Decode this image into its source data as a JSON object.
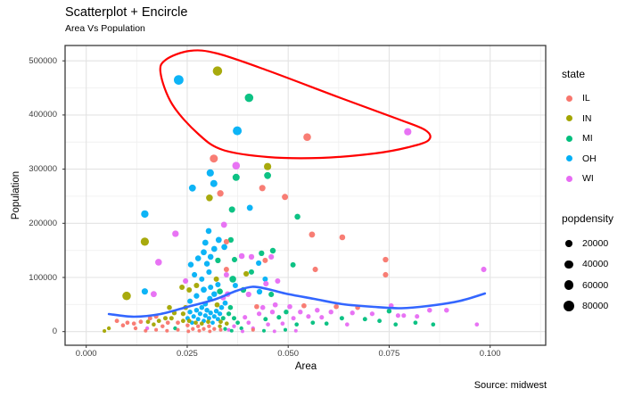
{
  "chart_data": {
    "type": "scatter",
    "title": "Scatterplot + Encircle",
    "subtitle": "Area Vs Population",
    "caption": "Source: midwest",
    "xlabel": "Area",
    "ylabel": "Population",
    "x_axis": {
      "ticks": [
        0,
        0.025,
        0.05,
        0.075,
        0.1
      ],
      "labels": [
        "0.000",
        "0.025",
        "0.050",
        "0.075",
        "0.100"
      ],
      "minor": [
        0.0125,
        0.0375,
        0.0625,
        0.0875,
        0.1125
      ]
    },
    "y_axis": {
      "ticks": [
        0,
        100000,
        200000,
        300000,
        400000,
        500000
      ],
      "labels": [
        "0",
        "100000",
        "200000",
        "300000",
        "400000",
        "500000"
      ],
      "minor": [
        50000,
        150000,
        250000,
        350000,
        450000
      ]
    },
    "grid": true,
    "legend_position": "right",
    "series_colors": {
      "IL": "#F8766D",
      "IN": "#A3A500",
      "MI": "#00BF7D",
      "OH": "#00B0F6",
      "WI": "#E76BF3"
    },
    "smooth_color": "#3366FF",
    "encircle_color": "#FF0000",
    "grid_major_color": "#E3E3E3",
    "grid_minor_color": "#F0F0F0",
    "panel_border_color": "#3A3A3A",
    "point_columns": [
      "area",
      "poptotal",
      "state",
      "popdensity"
    ],
    "points": [
      [
        0.0229,
        464800,
        "OH",
        60000
      ],
      [
        0.0325,
        481300,
        "IN",
        55000
      ],
      [
        0.0403,
        431800,
        "MI",
        42000
      ],
      [
        0.0374,
        370800,
        "OH",
        48000
      ],
      [
        0.0547,
        359200,
        "IL",
        30000
      ],
      [
        0.0796,
        369100,
        "WI",
        26000
      ],
      [
        0.0316,
        319600,
        "IL",
        35000
      ],
      [
        0.0371,
        306400,
        "WI",
        30000
      ],
      [
        0.0449,
        304700,
        "IN",
        26000
      ],
      [
        0.0371,
        284900,
        "MI",
        24000
      ],
      [
        0.0449,
        288200,
        "MI",
        22000
      ],
      [
        0.0307,
        293100,
        "OH",
        26000
      ],
      [
        0.0316,
        273400,
        "OH",
        24000
      ],
      [
        0.0263,
        265100,
        "OH",
        22000
      ],
      [
        0.0305,
        247000,
        "IN",
        20000
      ],
      [
        0.0332,
        255200,
        "IL",
        18000
      ],
      [
        0.0436,
        265100,
        "IL",
        16000
      ],
      [
        0.0492,
        248600,
        "IL",
        15000
      ],
      [
        0.0145,
        217200,
        "OH",
        28000
      ],
      [
        0.0361,
        225400,
        "MI",
        16000
      ],
      [
        0.0405,
        228700,
        "OH",
        14000
      ],
      [
        0.0523,
        212200,
        "MI",
        12000
      ],
      [
        0.0341,
        197300,
        "WI",
        14000
      ],
      [
        0.0221,
        180800,
        "WI",
        18000
      ],
      [
        0.0559,
        179200,
        "IL",
        14000
      ],
      [
        0.0634,
        174200,
        "IL",
        12000
      ],
      [
        0.0145,
        166000,
        "IN",
        38000
      ],
      [
        0.0179,
        128100,
        "WI",
        20000
      ],
      [
        0.0358,
        169300,
        "MI",
        10000
      ],
      [
        0.0347,
        166000,
        "IL",
        9000
      ],
      [
        0.0385,
        139600,
        "WI",
        12000
      ],
      [
        0.0409,
        138000,
        "WI",
        10000
      ],
      [
        0.0367,
        133000,
        "MI",
        9000
      ],
      [
        0.0434,
        144600,
        "MI",
        10000
      ],
      [
        0.0462,
        149500,
        "MI",
        11000
      ],
      [
        0.0458,
        138000,
        "WI",
        9000
      ],
      [
        0.0427,
        126500,
        "OH",
        9000
      ],
      [
        0.0443,
        131400,
        "IL",
        8000
      ],
      [
        0.0347,
        114900,
        "IL",
        8000
      ],
      [
        0.0347,
        105000,
        "WI",
        8000
      ],
      [
        0.0396,
        106700,
        "IN",
        9000
      ],
      [
        0.0409,
        110000,
        "MI",
        8000
      ],
      [
        0.0363,
        96800,
        "MI",
        20000
      ],
      [
        0.0443,
        96800,
        "OH",
        8000
      ],
      [
        0.0369,
        85200,
        "OH",
        8000
      ],
      [
        0.0445,
        88500,
        "WI",
        9000
      ],
      [
        0.0474,
        93400,
        "WI",
        8000
      ],
      [
        0.0512,
        123200,
        "MI",
        8000
      ],
      [
        0.0567,
        114900,
        "IL",
        9000
      ],
      [
        0.0741,
        133000,
        "IL",
        10000
      ],
      [
        0.0741,
        105000,
        "IL",
        9000
      ],
      [
        0.0984,
        114900,
        "WI",
        9000
      ],
      [
        0.0303,
        185800,
        "OH",
        12000
      ],
      [
        0.0045,
        1200,
        "IN",
        800
      ],
      [
        0.0056,
        6100,
        "IN",
        1500
      ],
      [
        0.01,
        65900,
        "IN",
        42000
      ],
      [
        0.0076,
        19800,
        "IL",
        3000
      ],
      [
        0.0091,
        11500,
        "IL",
        2000
      ],
      [
        0.0102,
        16500,
        "IL",
        2500
      ],
      [
        0.0118,
        14800,
        "IL",
        2200
      ],
      [
        0.0122,
        6100,
        "IL",
        1500
      ],
      [
        0.0135,
        18100,
        "IL",
        2600
      ],
      [
        0.0145,
        74200,
        "OH",
        16000
      ],
      [
        0.0167,
        69200,
        "WI",
        14000
      ],
      [
        0.0151,
        6100,
        "WI",
        1500
      ],
      [
        0.0153,
        18100,
        "IN",
        2600
      ],
      [
        0.0167,
        13200,
        "IN",
        2000
      ],
      [
        0.018,
        19800,
        "IN",
        2800
      ],
      [
        0.0158,
        24700,
        "IL",
        3400
      ],
      [
        0.0173,
        28000,
        "IL",
        3800
      ],
      [
        0.0189,
        9900,
        "IL",
        1800
      ],
      [
        0.0202,
        16500,
        "IL",
        2500
      ],
      [
        0.0196,
        24700,
        "IN",
        3400
      ],
      [
        0.0211,
        24700,
        "IN",
        3400
      ],
      [
        0.0218,
        34600,
        "IN",
        4600
      ],
      [
        0.0206,
        44500,
        "IN",
        6000
      ],
      [
        0.022,
        6100,
        "MI",
        1500
      ],
      [
        0.0227,
        16500,
        "IL",
        2500
      ],
      [
        0.024,
        33000,
        "IN",
        4400
      ],
      [
        0.0246,
        44500,
        "IN",
        6000
      ],
      [
        0.0251,
        24700,
        "OH",
        3400
      ],
      [
        0.0257,
        36200,
        "OH",
        5000
      ],
      [
        0.0262,
        16500,
        "OH",
        2500
      ],
      [
        0.0266,
        28000,
        "OH",
        4000
      ],
      [
        0.0273,
        39500,
        "OH",
        5400
      ],
      [
        0.0277,
        23100,
        "OH",
        3200
      ],
      [
        0.0282,
        33000,
        "OH",
        4400
      ],
      [
        0.0286,
        44500,
        "OH",
        6000
      ],
      [
        0.0291,
        19800,
        "OH",
        2800
      ],
      [
        0.0295,
        29700,
        "OH",
        4200
      ],
      [
        0.0299,
        39500,
        "OH",
        5400
      ],
      [
        0.0304,
        24700,
        "OH",
        3400
      ],
      [
        0.0308,
        34600,
        "OH",
        4600
      ],
      [
        0.0313,
        16500,
        "OH",
        2500
      ],
      [
        0.0317,
        28000,
        "OH",
        4000
      ],
      [
        0.0322,
        37900,
        "OH",
        5200
      ],
      [
        0.0326,
        23100,
        "OH",
        3200
      ],
      [
        0.0331,
        33000,
        "OH",
        4400
      ],
      [
        0.0295,
        51100,
        "OH",
        7000
      ],
      [
        0.0306,
        61000,
        "OH",
        9000
      ],
      [
        0.0317,
        69200,
        "OH",
        11000
      ],
      [
        0.0291,
        77400,
        "OH",
        13000
      ],
      [
        0.0273,
        65900,
        "OH",
        10000
      ],
      [
        0.0257,
        56100,
        "OH",
        8000
      ],
      [
        0.0335,
        44500,
        "OH",
        6000
      ],
      [
        0.0344,
        52700,
        "OH",
        7200
      ],
      [
        0.0251,
        11500,
        "IL",
        1800
      ],
      [
        0.0264,
        4900,
        "IL",
        1200
      ],
      [
        0.0277,
        9900,
        "IL",
        1600
      ],
      [
        0.0291,
        4900,
        "IL",
        1200
      ],
      [
        0.0304,
        9900,
        "IL",
        1600
      ],
      [
        0.0317,
        4900,
        "IL",
        1200
      ],
      [
        0.0331,
        9900,
        "IN",
        1600
      ],
      [
        0.0344,
        4900,
        "MI",
        1200
      ],
      [
        0.024,
        19800,
        "IN",
        2800
      ],
      [
        0.0255,
        19800,
        "IN",
        2800
      ],
      [
        0.0271,
        16500,
        "IN",
        2500
      ],
      [
        0.0286,
        14800,
        "IN",
        2300
      ],
      [
        0.0302,
        18100,
        "IN",
        2600
      ],
      [
        0.0333,
        18100,
        "IN",
        2600
      ],
      [
        0.0348,
        14800,
        "IN",
        2300
      ],
      [
        0.0339,
        24700,
        "MI",
        3400
      ],
      [
        0.0353,
        33000,
        "MI",
        4400
      ],
      [
        0.0324,
        49400,
        "IN",
        6600
      ],
      [
        0.0339,
        62600,
        "WI",
        9400
      ],
      [
        0.035,
        69200,
        "WI",
        11000
      ],
      [
        0.0331,
        74200,
        "MI",
        12600
      ],
      [
        0.0357,
        44500,
        "MI",
        6000
      ],
      [
        0.0366,
        24700,
        "MI",
        3400
      ],
      [
        0.0366,
        9900,
        "WI",
        1600
      ],
      [
        0.0353,
        3300,
        "WI",
        1100
      ],
      [
        0.0259,
        123700,
        "OH",
        11000
      ],
      [
        0.0277,
        135200,
        "OH",
        12000
      ],
      [
        0.0291,
        146700,
        "OH",
        13000
      ],
      [
        0.0299,
        125400,
        "OH",
        11000
      ],
      [
        0.0308,
        138000,
        "OH",
        12000
      ],
      [
        0.0317,
        152800,
        "OH",
        13000
      ],
      [
        0.0326,
        131400,
        "MI",
        10000
      ],
      [
        0.0268,
        105000,
        "OH",
        9000
      ],
      [
        0.0286,
        96800,
        "OH",
        8000
      ],
      [
        0.0304,
        110000,
        "OH",
        9000
      ],
      [
        0.0322,
        96800,
        "IN",
        8000
      ],
      [
        0.0246,
        93400,
        "WI",
        9000
      ],
      [
        0.0237,
        81900,
        "IN",
        8000
      ],
      [
        0.0255,
        77000,
        "IN",
        8000
      ],
      [
        0.0273,
        85200,
        "IN",
        8400
      ],
      [
        0.0308,
        81900,
        "OH",
        8400
      ],
      [
        0.0326,
        86900,
        "OH",
        8800
      ],
      [
        0.0295,
        164300,
        "OH",
        14000
      ],
      [
        0.0328,
        169300,
        "OH",
        14000
      ],
      [
        0.0342,
        156100,
        "OH",
        13000
      ],
      [
        0.0389,
        77000,
        "MI",
        11000
      ],
      [
        0.0402,
        68700,
        "WI",
        9400
      ],
      [
        0.0429,
        73700,
        "OH",
        10000
      ],
      [
        0.0458,
        68700,
        "MI",
        9000
      ],
      [
        0.0375,
        16500,
        "MI",
        2500
      ],
      [
        0.0384,
        6100,
        "MI",
        1500
      ],
      [
        0.0393,
        26400,
        "WI",
        3600
      ],
      [
        0.0402,
        16500,
        "WI",
        2500
      ],
      [
        0.0413,
        6100,
        "WI",
        1500
      ],
      [
        0.0422,
        46100,
        "IL",
        6200
      ],
      [
        0.0428,
        33000,
        "WI",
        4400
      ],
      [
        0.0437,
        44500,
        "WI",
        6000
      ],
      [
        0.0444,
        23100,
        "MI",
        3100
      ],
      [
        0.045,
        13200,
        "WI",
        2200
      ],
      [
        0.0461,
        36200,
        "WI",
        5000
      ],
      [
        0.0468,
        49400,
        "WI",
        6600
      ],
      [
        0.0477,
        26400,
        "MI",
        3600
      ],
      [
        0.0486,
        14800,
        "WI",
        2300
      ],
      [
        0.0495,
        36200,
        "MI",
        5000
      ],
      [
        0.0504,
        46100,
        "WI",
        6200
      ],
      [
        0.0513,
        24700,
        "WI",
        3400
      ],
      [
        0.0521,
        13200,
        "MI",
        2200
      ],
      [
        0.053,
        36200,
        "WI",
        5000
      ],
      [
        0.0539,
        47800,
        "IL",
        6400
      ],
      [
        0.055,
        28000,
        "WI",
        4000
      ],
      [
        0.0561,
        16500,
        "MI",
        2500
      ],
      [
        0.0572,
        39500,
        "WI",
        5400
      ],
      [
        0.0583,
        26400,
        "WI",
        3600
      ],
      [
        0.0595,
        14800,
        "MI",
        2300
      ],
      [
        0.0606,
        36200,
        "WI",
        5000
      ],
      [
        0.0619,
        46100,
        "IL",
        6200
      ],
      [
        0.0633,
        24700,
        "MI",
        3400
      ],
      [
        0.0646,
        13200,
        "WI",
        2200
      ],
      [
        0.0659,
        34600,
        "WI",
        4600
      ],
      [
        0.0672,
        44500,
        "IL",
        6000
      ],
      [
        0.069,
        23100,
        "MI",
        3100
      ],
      [
        0.0708,
        33000,
        "WI",
        4400
      ],
      [
        0.0726,
        19800,
        "MI",
        2800
      ],
      [
        0.075,
        37900,
        "MI",
        5200
      ],
      [
        0.0766,
        13200,
        "MI",
        2200
      ],
      [
        0.0772,
        29700,
        "WI",
        3900
      ],
      [
        0.0786,
        29700,
        "WI",
        3900
      ],
      [
        0.0815,
        16500,
        "MI",
        2500
      ],
      [
        0.0819,
        28000,
        "WI",
        3700
      ],
      [
        0.085,
        39500,
        "WI",
        5400
      ],
      [
        0.0859,
        13200,
        "MI",
        2200
      ],
      [
        0.0892,
        39500,
        "WI",
        5400
      ],
      [
        0.0967,
        13200,
        "WI",
        2200
      ],
      [
        0.0755,
        47800,
        "WI",
        6400
      ],
      [
        0.0147,
        1600,
        "IL",
        700
      ],
      [
        0.0173,
        3300,
        "IL",
        800
      ],
      [
        0.02,
        1600,
        "IL",
        700
      ],
      [
        0.0227,
        3300,
        "IL",
        800
      ],
      [
        0.0253,
        500,
        "IL",
        600
      ],
      [
        0.028,
        1600,
        "IL",
        700
      ],
      [
        0.0306,
        500,
        "IL",
        600
      ],
      [
        0.0333,
        3300,
        "IL",
        800
      ],
      [
        0.036,
        1600,
        "MI",
        700
      ],
      [
        0.0387,
        500,
        "WI",
        600
      ],
      [
        0.0413,
        3300,
        "IL",
        800
      ],
      [
        0.044,
        1600,
        "MI",
        700
      ],
      [
        0.0466,
        500,
        "WI",
        600
      ],
      [
        0.0493,
        3300,
        "MI",
        800
      ],
      [
        0.0519,
        1600,
        "WI",
        700
      ]
    ],
    "smooth_line": [
      [
        0.0056,
        32500
      ],
      [
        0.0118,
        27500
      ],
      [
        0.0184,
        32500
      ],
      [
        0.025,
        45600
      ],
      [
        0.0316,
        58800
      ],
      [
        0.0372,
        75300
      ],
      [
        0.0411,
        82700
      ],
      [
        0.0449,
        78600
      ],
      [
        0.0493,
        70300
      ],
      [
        0.0564,
        60500
      ],
      [
        0.0636,
        50600
      ],
      [
        0.0714,
        45600
      ],
      [
        0.078,
        43200
      ],
      [
        0.0846,
        47300
      ],
      [
        0.0923,
        56300
      ],
      [
        0.0987,
        70300
      ]
    ],
    "encircle": [
      [
        0.0257,
        518500
      ],
      [
        0.0197,
        502000
      ],
      [
        0.0184,
        477300
      ],
      [
        0.0213,
        419600
      ],
      [
        0.0277,
        365300
      ],
      [
        0.0338,
        335600
      ],
      [
        0.0449,
        322400
      ],
      [
        0.0581,
        320800
      ],
      [
        0.0714,
        329000
      ],
      [
        0.0798,
        340500
      ],
      [
        0.0848,
        353700
      ],
      [
        0.084,
        371800
      ],
      [
        0.0769,
        393200
      ],
      [
        0.0625,
        432800
      ],
      [
        0.0449,
        482200
      ],
      [
        0.0325,
        513500
      ]
    ]
  },
  "legend": {
    "state": {
      "title": "state",
      "items": [
        {
          "label": "IL",
          "color": "#F8766D"
        },
        {
          "label": "IN",
          "color": "#A3A500"
        },
        {
          "label": "MI",
          "color": "#00BF7D"
        },
        {
          "label": "OH",
          "color": "#00B0F6"
        },
        {
          "label": "WI",
          "color": "#E76BF3"
        }
      ]
    },
    "popdensity": {
      "title": "popdensity",
      "items": [
        {
          "label": "20000",
          "value": 20000
        },
        {
          "label": "40000",
          "value": 40000
        },
        {
          "label": "60000",
          "value": 60000
        },
        {
          "label": "80000",
          "value": 80000
        }
      ]
    }
  }
}
